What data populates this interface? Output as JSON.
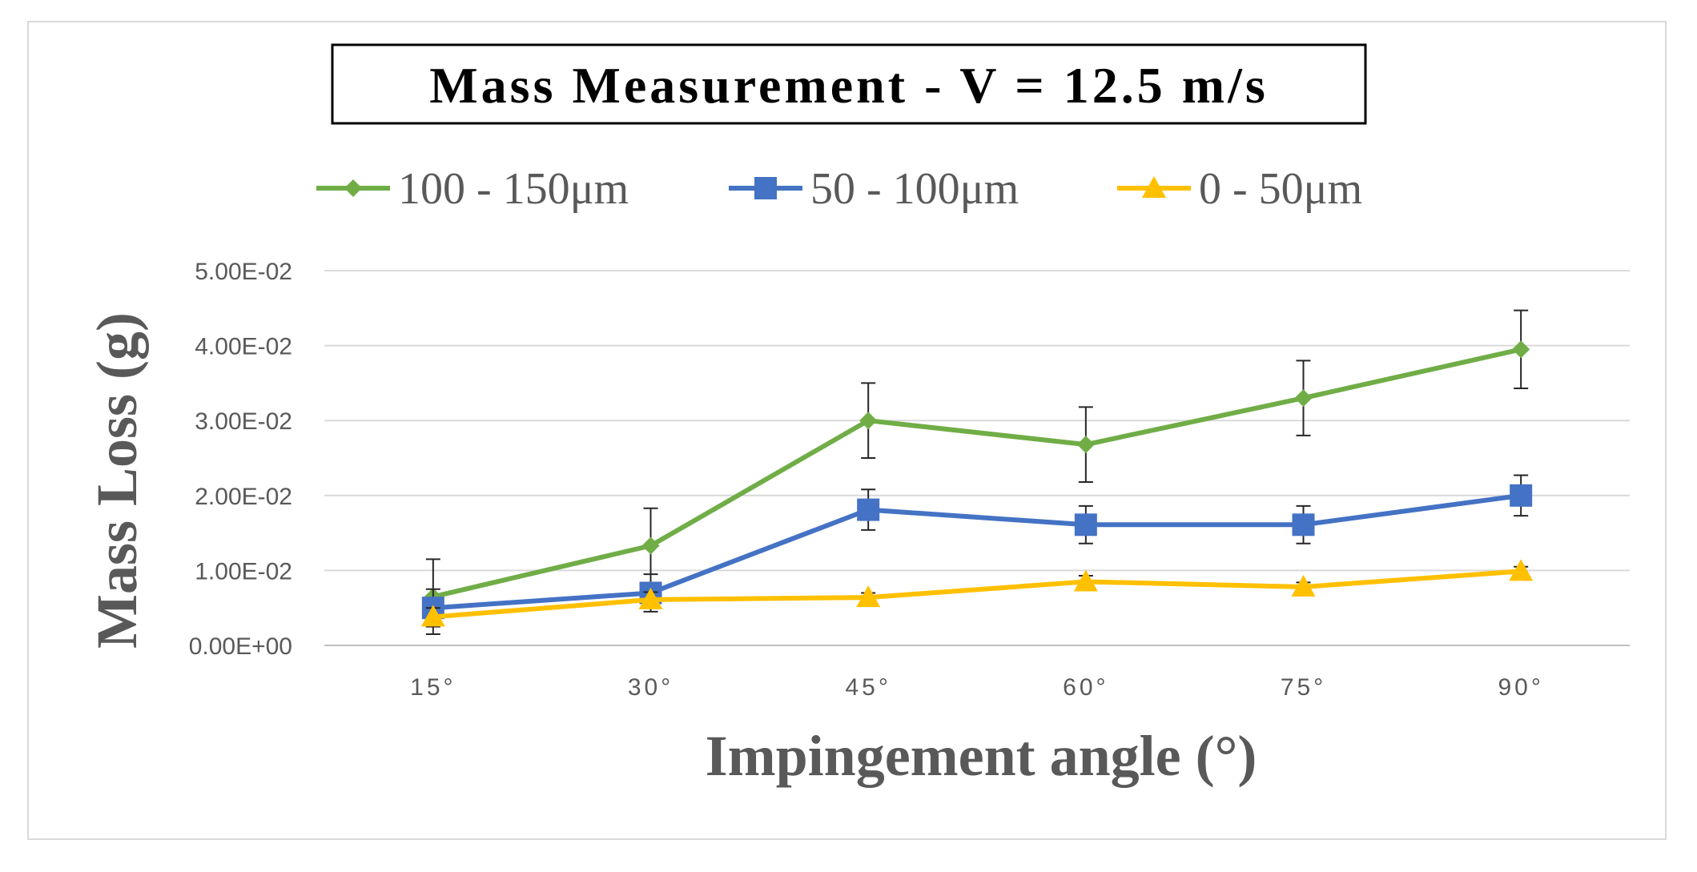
{
  "chart_data": {
    "type": "line",
    "title": "Mass Measurement  - V = 12.5 m/s",
    "xlabel": "Impingement angle (°)",
    "ylabel": "Mass Loss (g)",
    "categories": [
      "15°",
      "30°",
      "45°",
      "60°",
      "75°",
      "90°"
    ],
    "y_ticks": [
      "0.00E+00",
      "1.00E-02",
      "2.00E-02",
      "3.00E-02",
      "4.00E-02",
      "5.00E-02"
    ],
    "ylim": [
      0,
      0.05
    ],
    "grid": true,
    "legend_position": "top",
    "series": [
      {
        "name": "100 - 150μm",
        "color": "#70ad47",
        "marker": "diamond",
        "values": [
          0.0065,
          0.0133,
          0.03,
          0.0268,
          0.033,
          0.0395
        ],
        "error": [
          0.005,
          0.005,
          0.005,
          0.005,
          0.005,
          0.0052
        ]
      },
      {
        "name": "50 - 100μm",
        "color": "#4472c4",
        "marker": "square",
        "values": [
          0.005,
          0.007,
          0.0181,
          0.0161,
          0.0161,
          0.02
        ],
        "error": [
          0.0025,
          0.0025,
          0.0027,
          0.0025,
          0.0025,
          0.0027
        ]
      },
      {
        "name": "0 - 50μm",
        "color": "#ffc000",
        "marker": "triangle",
        "values": [
          0.0038,
          0.0061,
          0.0064,
          0.0085,
          0.0078,
          0.0099
        ],
        "error": [
          0.0012,
          0.001,
          0.0006,
          0.0008,
          0.0006,
          0.0006
        ]
      }
    ]
  }
}
